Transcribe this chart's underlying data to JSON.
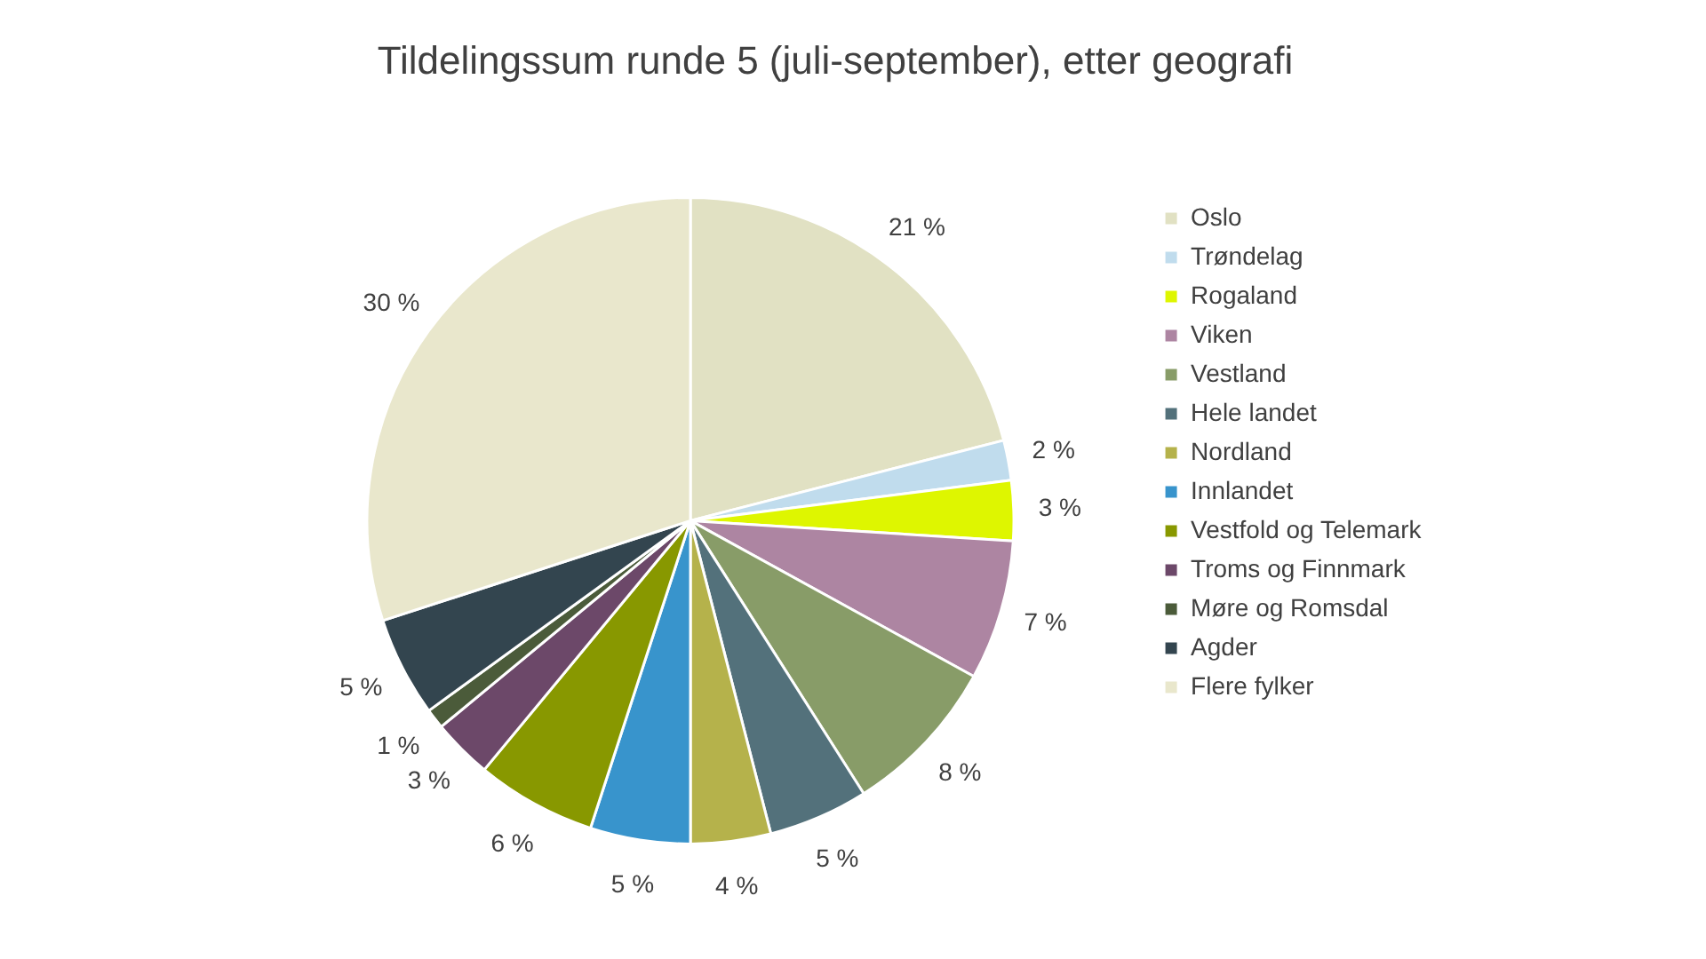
{
  "chart_data": {
    "type": "pie",
    "title": "Tildelingssum runde 5 (juli-september), etter geografi",
    "categories": [
      "Oslo",
      "Trøndelag",
      "Rogaland",
      "Viken",
      "Vestland",
      "Hele landet",
      "Nordland",
      "Innlandet",
      "Vestfold og Telemark",
      "Troms og Finnmark",
      "Møre og Romsdal",
      "Agder",
      "Flere fylker"
    ],
    "values": [
      21,
      2,
      3,
      7,
      8,
      5,
      4,
      5,
      6,
      3,
      1,
      5,
      30
    ],
    "value_labels": [
      "21 %",
      "2 %",
      "3 %",
      "7 %",
      "8 %",
      "5 %",
      "4 %",
      "5 %",
      "6 %",
      "3 %",
      "1 %",
      "5 %",
      "30 %"
    ],
    "colors": [
      "#e1e1c3",
      "#c0dced",
      "#def600",
      "#ad85a2",
      "#889c68",
      "#53717b",
      "#b5b24b",
      "#3894cc",
      "#889800",
      "#6c4869",
      "#4b5b3a",
      "#33454f",
      "#e9e7cc"
    ],
    "legend": "right"
  }
}
